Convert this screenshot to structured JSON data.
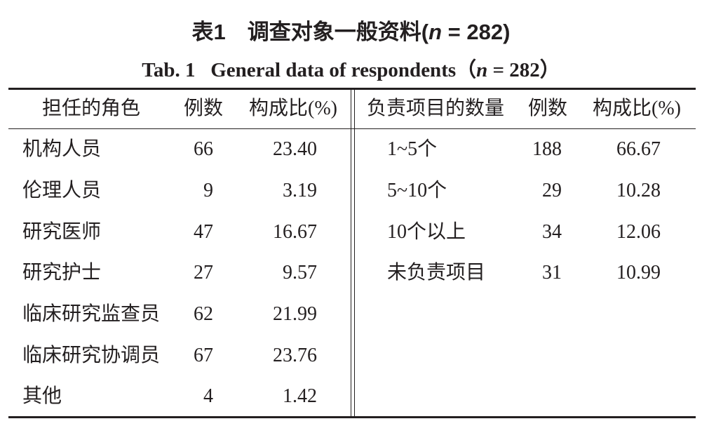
{
  "header": {
    "title": {
      "label": "表1",
      "text": "调查对象一般资料(",
      "variable": "n",
      "rest": " = 282)"
    },
    "subtitle": {
      "label": "Tab. 1",
      "text": "General data of respondents（",
      "variable": "n",
      "rest": " = 282）"
    }
  },
  "table_left": {
    "columns": [
      "担任的角色",
      "例数",
      "构成比(%)"
    ],
    "rows": [
      [
        "机构人员",
        "66",
        "23.40"
      ],
      [
        "伦理人员",
        "9",
        "3.19"
      ],
      [
        "研究医师",
        "47",
        "16.67"
      ],
      [
        "研究护士",
        "27",
        "9.57"
      ],
      [
        "临床研究监查员",
        "62",
        "21.99"
      ],
      [
        "临床研究协调员",
        "67",
        "23.76"
      ],
      [
        "其他",
        "4",
        "1.42"
      ]
    ]
  },
  "table_right": {
    "columns": [
      "负责项目的数量",
      "例数",
      "构成比(%)"
    ],
    "rows": [
      [
        "1~5个",
        "188",
        "66.67"
      ],
      [
        "5~10个",
        "29",
        "10.28"
      ],
      [
        "10个以上",
        "34",
        "12.06"
      ],
      [
        "未负责项目",
        "31",
        "10.99"
      ]
    ]
  }
}
